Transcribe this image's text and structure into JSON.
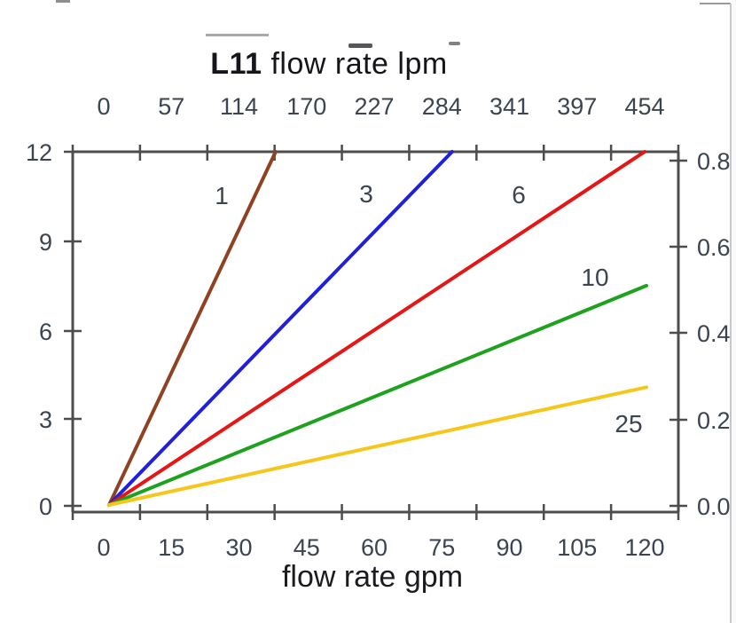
{
  "page": {
    "border_color": "#c6c8ca",
    "background": "#ffffff"
  },
  "chart_data": {
    "type": "line",
    "title_bold": "L11",
    "title_rest": " flow rate lpm",
    "top_axis": {
      "label": "L11 flow rate lpm",
      "ticks": [
        "0",
        "57",
        "114",
        "170",
        "227",
        "284",
        "341",
        "397",
        "454"
      ],
      "units": "lpm",
      "range": [
        0,
        480
      ]
    },
    "bottom_axis": {
      "label": "flow rate gpm",
      "ticks": [
        "0",
        "15",
        "30",
        "45",
        "60",
        "75",
        "90",
        "105",
        "120"
      ],
      "units": "gpm",
      "range": [
        0,
        127
      ]
    },
    "left_axis": {
      "ticks": [
        "12",
        "9",
        "6",
        "3",
        "0"
      ],
      "range": [
        0,
        12
      ]
    },
    "right_axis": {
      "ticks": [
        "0.8",
        "0.6",
        "0.4",
        "0.2",
        "0.0"
      ],
      "range": [
        0,
        0.8
      ]
    },
    "grid": false,
    "legend_position": "labels-on-lines",
    "axis_color": "#4d4d4d",
    "series": [
      {
        "name": "1",
        "color": "#8f4121",
        "points_gpm_psi": [
          [
            0,
            0
          ],
          [
            37.2,
            12
          ]
        ]
      },
      {
        "name": "3",
        "color": "#1f1fdc",
        "points_gpm_psi": [
          [
            0,
            0
          ],
          [
            76.6,
            12
          ]
        ]
      },
      {
        "name": "6",
        "color": "#e51616",
        "points_gpm_psi": [
          [
            0,
            0
          ],
          [
            119.6,
            12
          ]
        ]
      },
      {
        "name": "10",
        "color": "#1ea11e",
        "points_gpm_psi": [
          [
            0,
            0
          ],
          [
            120,
            7.45
          ]
        ]
      },
      {
        "name": "25",
        "color": "#f5c71d",
        "points_gpm_psi": [
          [
            0,
            0
          ],
          [
            120,
            4.0
          ]
        ]
      }
    ]
  }
}
